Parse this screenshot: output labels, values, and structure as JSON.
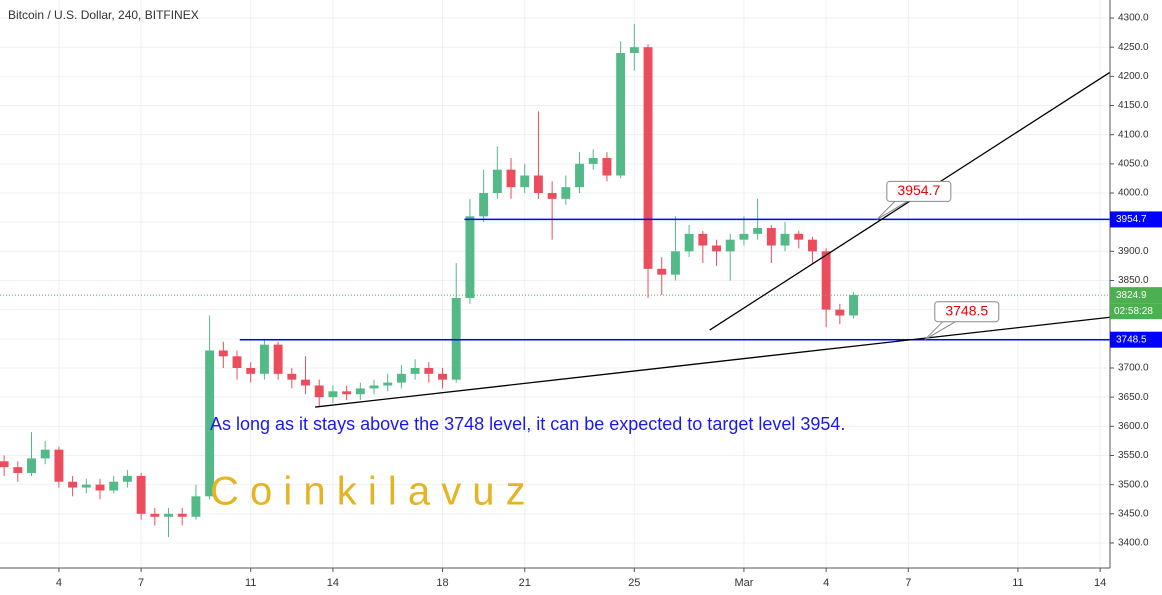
{
  "chart_data": {
    "type": "candlestick",
    "title": "Bitcoin / U.S. Dollar, 240, BITFINEX",
    "annotation": "As long as it stays above the 3748 level, it can be expected to target level 3954.",
    "watermark": "C o i n k i l a v u z",
    "up_color": "#53b987",
    "down_color": "#eb4d5c",
    "grid": true,
    "xlim": [
      0.85,
      41.36
    ],
    "ylim": [
      3357.1,
      4330.9
    ],
    "xticks": [
      {
        "value": 3,
        "label": "4"
      },
      {
        "value": 6,
        "label": "7"
      },
      {
        "value": 10,
        "label": "11"
      },
      {
        "value": 13,
        "label": "14"
      },
      {
        "value": 17,
        "label": "18"
      },
      {
        "value": 20,
        "label": "21"
      },
      {
        "value": 24,
        "label": "25"
      },
      {
        "value": 28,
        "label": "Mar"
      },
      {
        "value": 31,
        "label": "4"
      },
      {
        "value": 34,
        "label": "7"
      },
      {
        "value": 38,
        "label": "11"
      },
      {
        "value": 41,
        "label": "14"
      }
    ],
    "yticks": [
      {
        "value": 3400,
        "label": "3400.0"
      },
      {
        "value": 3450,
        "label": "3450.0"
      },
      {
        "value": 3500,
        "label": "3500.0"
      },
      {
        "value": 3550,
        "label": "3550.0"
      },
      {
        "value": 3600,
        "label": "3600.0"
      },
      {
        "value": 3650,
        "label": "3650.0"
      },
      {
        "value": 3700,
        "label": "3700.0"
      },
      {
        "value": 3750,
        "label": "3750.0"
      },
      {
        "value": 3800,
        "label": "3800.0"
      },
      {
        "value": 3850,
        "label": "3850.0"
      },
      {
        "value": 3900,
        "label": "3900.0"
      },
      {
        "value": 3950,
        "label": "3950.0"
      },
      {
        "value": 4000,
        "label": "4000.0"
      },
      {
        "value": 4050,
        "label": "4050.0"
      },
      {
        "value": 4100,
        "label": "4100.0"
      },
      {
        "value": 4150,
        "label": "4150.0"
      },
      {
        "value": 4200,
        "label": "4200.0"
      },
      {
        "value": 4250,
        "label": "4250.0"
      },
      {
        "value": 4300,
        "label": "4300.0"
      }
    ],
    "x": [
      1.0,
      1.5,
      2.0,
      2.5,
      3.0,
      3.5,
      4.0,
      4.5,
      5.0,
      5.5,
      6.0,
      6.5,
      7.0,
      7.5,
      8.0,
      8.5,
      9.0,
      9.5,
      10.0,
      10.5,
      11.0,
      11.5,
      12.0,
      12.5,
      13.0,
      13.5,
      14.0,
      14.5,
      15.0,
      15.5,
      16.0,
      16.5,
      17.0,
      17.5,
      18.0,
      18.5,
      19.0,
      19.5,
      20.0,
      20.5,
      21.0,
      21.5,
      22.0,
      22.5,
      23.0,
      23.5,
      24.0,
      24.5,
      25.0,
      25.5,
      26.0,
      26.5,
      27.0,
      27.5,
      28.0,
      28.5,
      29.0,
      29.5,
      30.0,
      30.5,
      31.0,
      31.5,
      32.0
    ],
    "open": [
      3540,
      3530,
      3520,
      3545,
      3560,
      3505,
      3495,
      3500,
      3490,
      3505,
      3515,
      3450,
      3445,
      3450,
      3445,
      3480,
      3730,
      3720,
      3700,
      3690,
      3740,
      3690,
      3680,
      3670,
      3650,
      3660,
      3655,
      3665,
      3670,
      3675,
      3690,
      3700,
      3690,
      3680,
      3820,
      3960,
      4000,
      4040,
      4010,
      4030,
      4000,
      3990,
      4010,
      4050,
      4060,
      4030,
      4240,
      4250,
      3870,
      3860,
      3900,
      3930,
      3910,
      3900,
      3920,
      3930,
      3940,
      3910,
      3930,
      3920,
      3900,
      3800,
      3790
    ],
    "high": [
      3550,
      3540,
      3590,
      3575,
      3565,
      3515,
      3510,
      3510,
      3515,
      3525,
      3520,
      3460,
      3460,
      3460,
      3500,
      3790,
      3745,
      3730,
      3710,
      3750,
      3745,
      3700,
      3720,
      3680,
      3670,
      3670,
      3675,
      3680,
      3690,
      3705,
      3715,
      3710,
      3700,
      3880,
      3990,
      4040,
      4080,
      4060,
      4050,
      4140,
      4020,
      4030,
      4070,
      4075,
      4070,
      4260,
      4290,
      4255,
      3890,
      3960,
      3945,
      3935,
      3920,
      3930,
      3960,
      3990,
      3945,
      3950,
      3935,
      3925,
      3905,
      3810,
      3830
    ],
    "low": [
      3515,
      3505,
      3515,
      3535,
      3495,
      3480,
      3485,
      3475,
      3485,
      3495,
      3440,
      3430,
      3410,
      3430,
      3440,
      3475,
      3700,
      3680,
      3675,
      3680,
      3680,
      3665,
      3655,
      3635,
      3640,
      3645,
      3645,
      3655,
      3660,
      3665,
      3680,
      3675,
      3665,
      3675,
      3810,
      3950,
      3990,
      3990,
      4000,
      3990,
      3920,
      3980,
      4000,
      4040,
      4020,
      4025,
      4210,
      3820,
      3825,
      3850,
      3890,
      3880,
      3875,
      3850,
      3910,
      3920,
      3880,
      3900,
      3905,
      3880,
      3770,
      3775,
      3785
    ],
    "close": [
      3530,
      3520,
      3545,
      3560,
      3505,
      3495,
      3500,
      3490,
      3505,
      3515,
      3450,
      3445,
      3450,
      3445,
      3480,
      3730,
      3720,
      3700,
      3690,
      3740,
      3690,
      3680,
      3670,
      3650,
      3660,
      3655,
      3665,
      3670,
      3675,
      3690,
      3700,
      3690,
      3680,
      3820,
      3960,
      4000,
      4040,
      4010,
      4030,
      4000,
      3990,
      4010,
      4050,
      4060,
      4030,
      4240,
      4250,
      3870,
      3860,
      3900,
      3930,
      3910,
      3900,
      3920,
      3930,
      3940,
      3910,
      3930,
      3920,
      3900,
      3800,
      3790,
      3825
    ],
    "price_lines": [
      {
        "value": 3954.7,
        "start": 17.8,
        "color": "#0000ff"
      },
      {
        "value": 3748.5,
        "start": 9.6,
        "color": "#0000ff"
      }
    ],
    "last_price": {
      "value": 3824.9,
      "countdown": "02:58:28",
      "color": "#4caf50"
    },
    "trend_lines": [
      {
        "points": [
          [
            12.35,
            3633
          ],
          [
            41.36,
            3787
          ]
        ]
      },
      {
        "points": [
          [
            26.75,
            3765
          ],
          [
            41.36,
            4207
          ]
        ]
      }
    ],
    "callouts": [
      {
        "x": 32.85,
        "value": 3954.7
      },
      {
        "x": 34.6,
        "value": 3748.5
      }
    ]
  }
}
